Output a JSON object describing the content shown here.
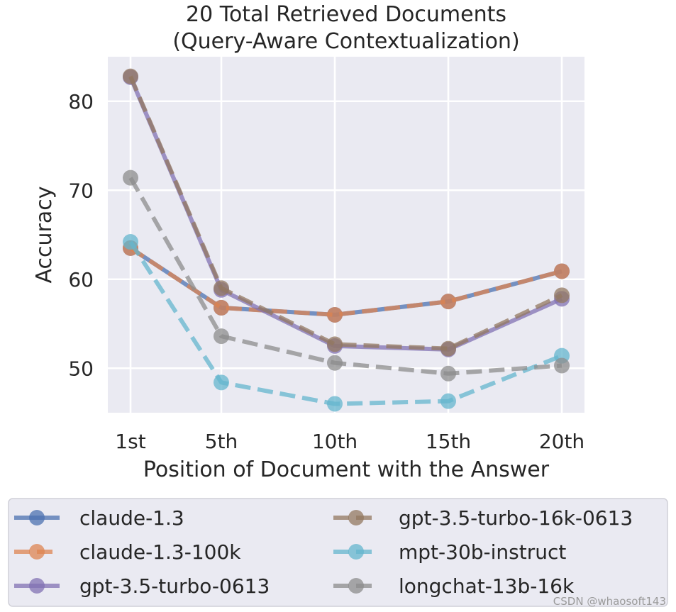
{
  "chart_data": {
    "type": "line",
    "title": "20 Total Retrieved Documents",
    "subtitle": "(Query-Aware Contextualization)",
    "xlabel": "Position of Document with the Answer",
    "ylabel": "Accuracy",
    "categories": [
      "1st",
      "5th",
      "10th",
      "15th",
      "20th"
    ],
    "x": [
      1,
      5,
      10,
      15,
      20
    ],
    "xlim": [
      0,
      21
    ],
    "ylim": [
      45,
      85
    ],
    "yticks": [
      50,
      60,
      70,
      80
    ],
    "grid": true,
    "legend_placement": "below",
    "series": [
      {
        "name": "claude-1.3",
        "values": [
          63.5,
          56.8,
          56.0,
          57.5,
          60.9
        ],
        "color": "#4c72b0",
        "dashed": false
      },
      {
        "name": "claude-1.3-100k",
        "values": [
          63.5,
          56.8,
          56.0,
          57.5,
          60.9
        ],
        "color": "#dd8452",
        "dashed": true
      },
      {
        "name": "gpt-3.5-turbo-0613",
        "values": [
          82.7,
          58.8,
          52.5,
          52.1,
          57.8
        ],
        "color": "#8172b3",
        "dashed": false
      },
      {
        "name": "gpt-3.5-turbo-16k-0613",
        "values": [
          82.8,
          59.0,
          52.7,
          52.2,
          58.2
        ],
        "color": "#937860",
        "dashed": true
      },
      {
        "name": "mpt-30b-instruct",
        "values": [
          64.2,
          48.4,
          46.0,
          46.3,
          51.4
        ],
        "color": "#64b5cd",
        "dashed": true
      },
      {
        "name": "longchat-13b-16k",
        "values": [
          71.4,
          53.6,
          50.6,
          49.4,
          50.3
        ],
        "color": "#8c8c8c",
        "dashed": true
      }
    ]
  },
  "watermark": "CSDN @whaosoft143"
}
